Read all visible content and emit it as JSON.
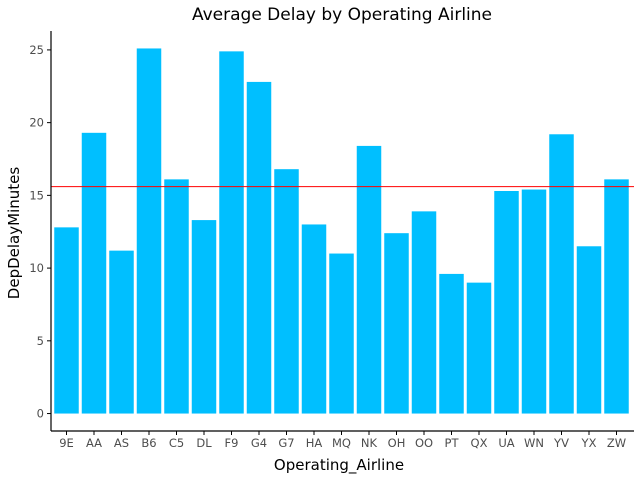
{
  "chart_data": {
    "type": "bar",
    "title": "Average Delay by Operating Airline",
    "xlabel": "Operating_Airline",
    "ylabel": "DepDelayMinutes",
    "categories": [
      "9E",
      "AA",
      "AS",
      "B6",
      "C5",
      "DL",
      "F9",
      "G4",
      "G7",
      "HA",
      "MQ",
      "NK",
      "OH",
      "OO",
      "PT",
      "QX",
      "UA",
      "WN",
      "YV",
      "YX",
      "ZW"
    ],
    "values": [
      12.8,
      19.3,
      11.2,
      25.1,
      16.1,
      13.3,
      24.9,
      22.8,
      16.8,
      13.0,
      11.0,
      18.4,
      12.4,
      13.9,
      9.6,
      9.0,
      15.3,
      15.4,
      19.2,
      11.5,
      16.1
    ],
    "reference_line": 15.6,
    "ylim": [
      -1.2,
      26.3
    ],
    "yticks": [
      0,
      5,
      10,
      15,
      20,
      25
    ],
    "grid": false,
    "colors": {
      "bar": "#00bfff",
      "reference_line": "#ff0000",
      "axis": "#000000",
      "tick_text": "#4d4d4d"
    }
  }
}
